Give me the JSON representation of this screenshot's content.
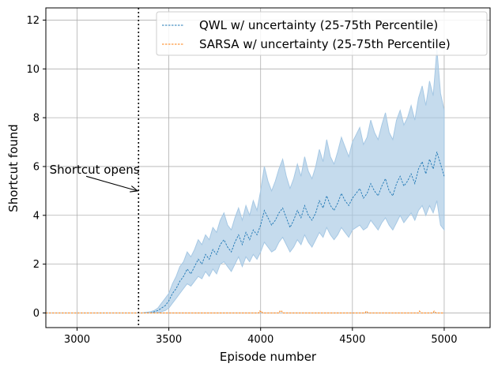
{
  "chart_data": {
    "type": "line",
    "title": "",
    "xlabel": "Episode number",
    "ylabel": "Shortcut found",
    "xlim": [
      2830,
      5250
    ],
    "ylim": [
      -0.6,
      12.5
    ],
    "xticks": [
      3000,
      3500,
      4000,
      4500,
      5000
    ],
    "yticks": [
      0,
      2,
      4,
      6,
      8,
      10,
      12
    ],
    "grid": true,
    "legend_position": "top-right",
    "shortcut_episode": 3335,
    "annotation": {
      "text": "Shortcut opens",
      "text_at": [
        2850,
        5.7
      ],
      "arrow_from": [
        3050,
        5.6
      ],
      "arrow_to": [
        3330,
        5.0
      ]
    },
    "series": [
      {
        "name": "QWL w/ uncertainty (25-75th Percentile)",
        "color": "#1f77b4",
        "band_color": "#a6c8e4",
        "x": [
          2830,
          3350,
          3400,
          3420,
          3440,
          3460,
          3480,
          3500,
          3520,
          3540,
          3560,
          3580,
          3600,
          3620,
          3640,
          3660,
          3680,
          3700,
          3720,
          3740,
          3760,
          3780,
          3800,
          3820,
          3840,
          3860,
          3880,
          3900,
          3920,
          3940,
          3960,
          3980,
          4000,
          4020,
          4040,
          4060,
          4080,
          4100,
          4120,
          4140,
          4160,
          4180,
          4200,
          4220,
          4240,
          4260,
          4280,
          4300,
          4320,
          4340,
          4360,
          4380,
          4400,
          4420,
          4440,
          4460,
          4480,
          4500,
          4520,
          4540,
          4560,
          4580,
          4600,
          4620,
          4640,
          4660,
          4680,
          4700,
          4720,
          4740,
          4760,
          4780,
          4800,
          4820,
          4840,
          4860,
          4880,
          4900,
          4920,
          4940,
          4960,
          4980,
          5000
        ],
        "median": [
          0,
          0,
          0.0,
          0.05,
          0.1,
          0.2,
          0.3,
          0.5,
          0.8,
          1.0,
          1.3,
          1.5,
          1.8,
          1.6,
          1.9,
          2.2,
          2.0,
          2.4,
          2.2,
          2.6,
          2.4,
          2.8,
          3.0,
          2.7,
          2.5,
          2.9,
          3.2,
          2.8,
          3.3,
          3.0,
          3.4,
          3.2,
          3.6,
          4.2,
          3.9,
          3.6,
          3.8,
          4.1,
          4.3,
          3.9,
          3.5,
          3.8,
          4.2,
          3.9,
          4.4,
          4.0,
          3.8,
          4.1,
          4.6,
          4.3,
          4.8,
          4.4,
          4.2,
          4.5,
          4.9,
          4.6,
          4.4,
          4.7,
          4.9,
          5.1,
          4.7,
          4.9,
          5.3,
          5.0,
          4.8,
          5.2,
          5.5,
          5.0,
          4.8,
          5.3,
          5.6,
          5.2,
          5.4,
          5.7,
          5.3,
          5.9,
          6.2,
          5.7,
          6.3,
          5.9,
          6.6,
          6.1,
          5.6
        ],
        "q25": [
          0,
          0,
          0.0,
          0.0,
          0.0,
          0.05,
          0.1,
          0.2,
          0.4,
          0.6,
          0.8,
          1.0,
          1.2,
          1.1,
          1.3,
          1.5,
          1.4,
          1.7,
          1.5,
          1.8,
          1.6,
          2.0,
          2.1,
          1.9,
          1.7,
          2.0,
          2.3,
          1.9,
          2.3,
          2.1,
          2.4,
          2.2,
          2.5,
          2.9,
          2.7,
          2.5,
          2.6,
          2.9,
          3.1,
          2.8,
          2.5,
          2.7,
          3.0,
          2.8,
          3.2,
          2.9,
          2.7,
          3.0,
          3.3,
          3.1,
          3.5,
          3.2,
          3.0,
          3.2,
          3.5,
          3.3,
          3.1,
          3.4,
          3.5,
          3.6,
          3.4,
          3.5,
          3.8,
          3.6,
          3.4,
          3.7,
          3.9,
          3.6,
          3.4,
          3.7,
          4.0,
          3.7,
          3.9,
          4.1,
          3.8,
          4.2,
          4.4,
          4.0,
          4.4,
          4.1,
          4.6,
          3.6,
          3.4
        ],
        "q75": [
          0,
          0,
          0.05,
          0.1,
          0.2,
          0.4,
          0.6,
          0.8,
          1.2,
          1.5,
          1.9,
          2.1,
          2.5,
          2.3,
          2.6,
          3.0,
          2.8,
          3.2,
          3.0,
          3.5,
          3.3,
          3.8,
          4.1,
          3.6,
          3.4,
          3.9,
          4.3,
          3.8,
          4.4,
          4.0,
          4.6,
          4.2,
          5.0,
          6.0,
          5.4,
          5.0,
          5.4,
          5.9,
          6.3,
          5.6,
          5.1,
          5.5,
          6.1,
          5.6,
          6.4,
          5.8,
          5.5,
          6.0,
          6.7,
          6.2,
          7.1,
          6.4,
          6.1,
          6.6,
          7.2,
          6.8,
          6.4,
          7.0,
          7.3,
          7.6,
          6.9,
          7.2,
          7.9,
          7.4,
          7.1,
          7.7,
          8.2,
          7.4,
          7.1,
          7.9,
          8.3,
          7.7,
          8.0,
          8.5,
          7.9,
          8.8,
          9.3,
          8.5,
          9.5,
          8.9,
          10.8,
          9.0,
          8.3
        ]
      },
      {
        "name": "SARSA w/ uncertainty (25-75th Percentile)",
        "color": "#ff7f0e",
        "band_color": "#ffbf86",
        "x": [
          2830,
          3990,
          3995,
          4000,
          4005,
          4010,
          4100,
          4105,
          4110,
          4115,
          4120,
          4570,
          4575,
          4580,
          4585,
          4860,
          4865,
          4870,
          4875,
          4940,
          4945,
          4950,
          4955,
          5000
        ],
        "median": [
          0,
          0,
          0.08,
          0.05,
          0.08,
          0,
          0,
          0.08,
          0.04,
          0.08,
          0,
          0,
          0.08,
          0.05,
          0,
          0,
          0.08,
          0.05,
          0,
          0,
          0.08,
          0.05,
          0,
          0
        ]
      }
    ]
  }
}
